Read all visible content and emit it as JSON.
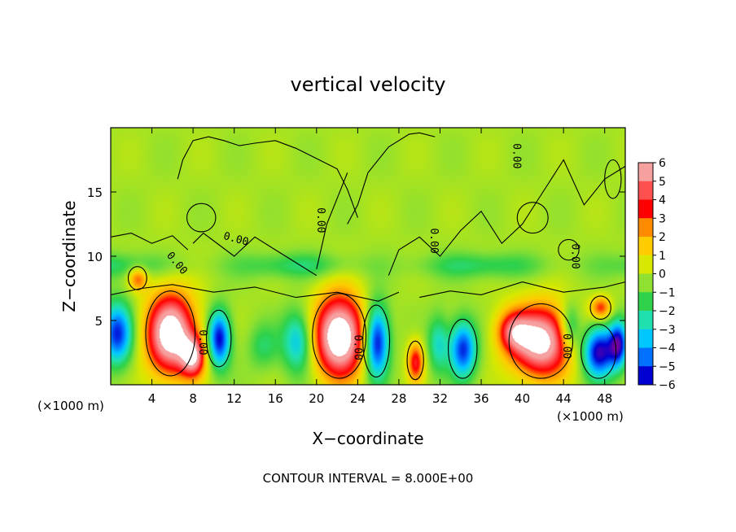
{
  "chart_data": {
    "type": "heatmap",
    "title": "vertical velocity",
    "xlabel": "X−coordinate",
    "ylabel": "Z−coordinate",
    "x_unit": "(×1000 m)",
    "x_unit_right": "(×1000 m)",
    "footer": "CONTOUR INTERVAL = 8.000E+00",
    "contour_label": "0.00",
    "xlim": [
      0,
      50
    ],
    "ylim": [
      0,
      20
    ],
    "x_ticks": [
      4,
      8,
      12,
      16,
      20,
      24,
      28,
      32,
      36,
      40,
      44,
      48
    ],
    "y_ticks": [
      5,
      10,
      15
    ],
    "colorbar": {
      "ticks": [
        6,
        5,
        4,
        3,
        2,
        1,
        0,
        -1,
        -2,
        -3,
        -4,
        -5,
        -6
      ],
      "labels": [
        "6",
        "5",
        "4",
        "3",
        "2",
        "1",
        "0",
        "−1",
        "−2",
        "−3",
        "−4",
        "−5",
        "−6"
      ],
      "colors": [
        "#f6a0a0",
        "#ff5050",
        "#ff0000",
        "#ff8c00",
        "#ffcc00",
        "#d8e800",
        "#8fe030",
        "#2fd24a",
        "#20e0b0",
        "#00c8ff",
        "#0070ff",
        "#0000d0",
        "#7000a0"
      ]
    },
    "background_value": 0.3,
    "features": [
      {
        "x": 5.8,
        "z": 4.0,
        "sx": 2.4,
        "sz": 3.2,
        "value": 7.5
      },
      {
        "x": 8.0,
        "z": 2.2,
        "sx": 1.2,
        "sz": 1.6,
        "value": 5
      },
      {
        "x": 10.5,
        "z": 3.6,
        "sx": 1.1,
        "sz": 2.2,
        "value": -5.5
      },
      {
        "x": 0.6,
        "z": 4.0,
        "sx": 1.5,
        "sz": 2.4,
        "value": -5
      },
      {
        "x": 2.6,
        "z": 8.3,
        "sx": 0.9,
        "sz": 0.9,
        "value": 3
      },
      {
        "x": 22.2,
        "z": 3.8,
        "sx": 2.5,
        "sz": 3.2,
        "value": 8
      },
      {
        "x": 25.8,
        "z": 3.4,
        "sx": 1.2,
        "sz": 2.8,
        "value": -6
      },
      {
        "x": 18.2,
        "z": 3.4,
        "sx": 1.5,
        "sz": 2.4,
        "value": -3.5
      },
      {
        "x": 29.6,
        "z": 1.8,
        "sx": 0.8,
        "sz": 1.6,
        "value": 4
      },
      {
        "x": 34.2,
        "z": 2.8,
        "sx": 1.3,
        "sz": 2.2,
        "value": -5
      },
      {
        "x": 31.8,
        "z": 3.2,
        "sx": 1.0,
        "sz": 2.2,
        "value": -2.5
      },
      {
        "x": 41.8,
        "z": 3.4,
        "sx": 3.0,
        "sz": 2.8,
        "value": 7
      },
      {
        "x": 39.0,
        "z": 4.2,
        "sx": 1.6,
        "sz": 1.6,
        "value": 3.5
      },
      {
        "x": 47.4,
        "z": 2.6,
        "sx": 1.6,
        "sz": 2.0,
        "value": -6
      },
      {
        "x": 49.3,
        "z": 3.2,
        "sx": 0.9,
        "sz": 1.8,
        "value": -5
      },
      {
        "x": 47.6,
        "z": 6.0,
        "sx": 1.0,
        "sz": 0.9,
        "value": 3.5
      },
      {
        "x": 44.6,
        "z": 4.5,
        "sx": 1.0,
        "sz": 1.8,
        "value": -3
      },
      {
        "x": 14.8,
        "z": 3.0,
        "sx": 1.5,
        "sz": 1.8,
        "value": -1.5
      }
    ],
    "contours": [
      {
        "x": [
          0,
          2,
          4,
          6,
          7.5
        ],
        "z": [
          11.5,
          11.8,
          11.0,
          11.6,
          10.5
        ]
      },
      {
        "x": [
          8,
          9,
          10,
          12,
          14,
          16,
          18,
          20
        ],
        "z": [
          11.0,
          11.8,
          11.2,
          10.0,
          11.5,
          10.5,
          9.5,
          8.5
        ]
      },
      {
        "x": [
          20,
          21,
          22,
          23
        ],
        "z": [
          9.0,
          12.5,
          14.5,
          16.5
        ]
      },
      {
        "x": [
          6.5,
          7,
          8,
          9.5,
          11,
          12.5,
          14,
          16,
          18,
          20,
          22,
          23,
          24
        ],
        "z": [
          16.0,
          17.5,
          19.0,
          19.3,
          19.0,
          18.6,
          18.8,
          19.0,
          18.4,
          17.6,
          16.8,
          15.2,
          13.0
        ]
      },
      {
        "x": [
          23,
          24,
          25,
          27,
          29,
          30,
          31.5
        ],
        "z": [
          12.5,
          14.0,
          16.5,
          18.5,
          19.5,
          19.6,
          19.3
        ]
      },
      {
        "x": [
          27,
          28,
          30,
          32,
          34,
          36,
          38,
          40,
          42,
          44,
          46,
          48,
          50
        ],
        "z": [
          8.5,
          10.5,
          11.5,
          10.0,
          12.0,
          13.5,
          11.0,
          12.5,
          15.0,
          17.5,
          14.0,
          16.0,
          17.0
        ]
      },
      {
        "x": [
          0,
          3,
          6,
          10,
          14,
          18,
          22,
          26,
          28
        ],
        "z": [
          7.0,
          7.5,
          7.8,
          7.2,
          7.6,
          6.8,
          7.2,
          6.5,
          7.2
        ]
      },
      {
        "x": [
          30,
          33,
          36,
          40,
          44,
          48,
          50
        ],
        "z": [
          6.8,
          7.3,
          7.0,
          8.0,
          7.2,
          7.6,
          8.0
        ]
      }
    ],
    "rings": [
      {
        "x": 5.8,
        "z": 4.0,
        "rx": 2.4,
        "rz": 3.3
      },
      {
        "x": 10.5,
        "z": 3.6,
        "rx": 1.2,
        "rz": 2.2
      },
      {
        "x": 22.2,
        "z": 3.8,
        "rx": 2.6,
        "rz": 3.3
      },
      {
        "x": 25.8,
        "z": 3.4,
        "rx": 1.3,
        "rz": 2.8
      },
      {
        "x": 29.6,
        "z": 1.9,
        "rx": 0.8,
        "rz": 1.5
      },
      {
        "x": 34.2,
        "z": 2.8,
        "rx": 1.4,
        "rz": 2.3
      },
      {
        "x": 41.8,
        "z": 3.4,
        "rx": 3.1,
        "rz": 2.9
      },
      {
        "x": 47.4,
        "z": 2.6,
        "rx": 1.7,
        "rz": 2.1
      },
      {
        "x": 47.6,
        "z": 6.0,
        "rx": 1.0,
        "rz": 0.9
      },
      {
        "x": 2.6,
        "z": 8.3,
        "rx": 0.9,
        "rz": 0.9
      },
      {
        "x": 8.8,
        "z": 13.0,
        "rx": 1.4,
        "rz": 1.1
      },
      {
        "x": 41.0,
        "z": 13.0,
        "rx": 1.5,
        "rz": 1.2
      },
      {
        "x": 44.5,
        "z": 10.5,
        "rx": 1.0,
        "rz": 0.8
      },
      {
        "x": 48.8,
        "z": 16.0,
        "rx": 0.8,
        "rz": 1.5
      }
    ],
    "labels": [
      {
        "x": 6.5,
        "z": 9.5,
        "angle": 50
      },
      {
        "x": 12.2,
        "z": 11.4,
        "angle": 15
      },
      {
        "x": 20.5,
        "z": 12.8,
        "angle": 90
      },
      {
        "x": 31.5,
        "z": 11.2,
        "angle": 90
      },
      {
        "x": 39.5,
        "z": 17.8,
        "angle": 90
      },
      {
        "x": 45.2,
        "z": 10.0,
        "angle": 90
      },
      {
        "x": 9.0,
        "z": 3.3,
        "angle": 90
      },
      {
        "x": 24.1,
        "z": 2.9,
        "angle": 90
      },
      {
        "x": 44.4,
        "z": 3.0,
        "angle": 90
      }
    ]
  }
}
